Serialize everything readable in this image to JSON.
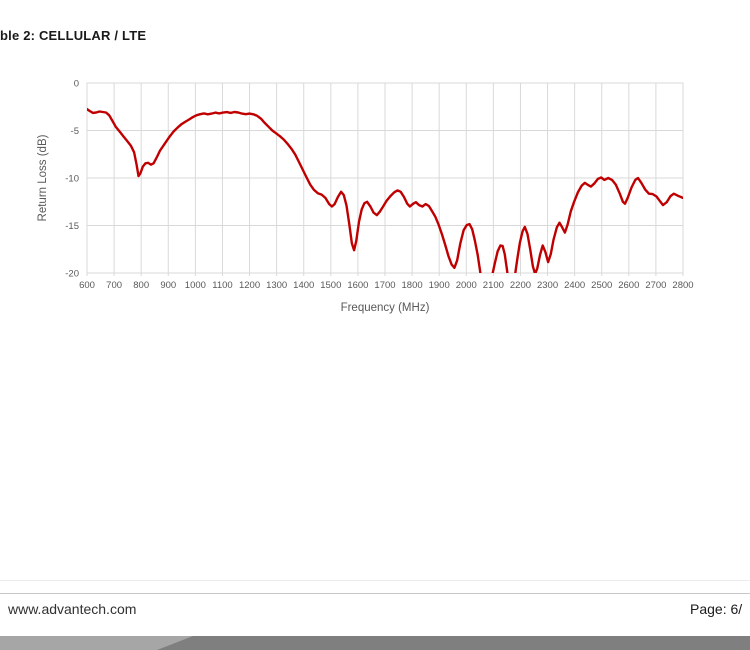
{
  "page": {
    "title": "ble 2: CELLULAR / LTE",
    "footer": {
      "website": "www.advantech.com",
      "page_label": "Page: 6/"
    },
    "colors": {
      "band_left": "#a6a6a6",
      "band_right": "#7f7f7f",
      "divider": "#c8c8c8"
    }
  },
  "chart_data": {
    "type": "line",
    "title": "",
    "xlabel": "Frequency (MHz)",
    "ylabel": "Return Loss (dB)",
    "xlim": [
      600,
      2800
    ],
    "ylim": [
      -20,
      0
    ],
    "x_ticks": [
      600,
      700,
      800,
      900,
      1000,
      1100,
      1200,
      1300,
      1400,
      1500,
      1600,
      1700,
      1800,
      1900,
      2000,
      2100,
      2200,
      2300,
      2400,
      2500,
      2600,
      2700,
      2800
    ],
    "y_ticks": [
      0,
      -5,
      -10,
      -15,
      -20
    ],
    "grid": true,
    "legend": "none",
    "line_color": "#C00000",
    "grid_color": "#D9D9D9",
    "tick_label_color": "#595959",
    "series": [
      {
        "name": "Return Loss",
        "points": [
          [
            600,
            -2.75
          ],
          [
            610,
            -2.95
          ],
          [
            622,
            -3.15
          ],
          [
            634,
            -3.1
          ],
          [
            646,
            -3.0
          ],
          [
            658,
            -3.05
          ],
          [
            670,
            -3.1
          ],
          [
            682,
            -3.4
          ],
          [
            694,
            -4.0
          ],
          [
            706,
            -4.6
          ],
          [
            720,
            -5.1
          ],
          [
            734,
            -5.6
          ],
          [
            748,
            -6.1
          ],
          [
            762,
            -6.6
          ],
          [
            774,
            -7.3
          ],
          [
            783,
            -8.6
          ],
          [
            790,
            -9.8
          ],
          [
            797,
            -9.5
          ],
          [
            806,
            -8.8
          ],
          [
            816,
            -8.45
          ],
          [
            826,
            -8.4
          ],
          [
            836,
            -8.6
          ],
          [
            846,
            -8.45
          ],
          [
            858,
            -7.8
          ],
          [
            870,
            -7.1
          ],
          [
            882,
            -6.6
          ],
          [
            894,
            -6.1
          ],
          [
            906,
            -5.6
          ],
          [
            920,
            -5.1
          ],
          [
            934,
            -4.7
          ],
          [
            948,
            -4.35
          ],
          [
            962,
            -4.1
          ],
          [
            976,
            -3.85
          ],
          [
            990,
            -3.6
          ],
          [
            1004,
            -3.4
          ],
          [
            1018,
            -3.28
          ],
          [
            1032,
            -3.2
          ],
          [
            1046,
            -3.3
          ],
          [
            1060,
            -3.22
          ],
          [
            1074,
            -3.12
          ],
          [
            1088,
            -3.2
          ],
          [
            1102,
            -3.12
          ],
          [
            1116,
            -3.06
          ],
          [
            1130,
            -3.15
          ],
          [
            1144,
            -3.05
          ],
          [
            1158,
            -3.1
          ],
          [
            1172,
            -3.22
          ],
          [
            1186,
            -3.28
          ],
          [
            1200,
            -3.22
          ],
          [
            1214,
            -3.3
          ],
          [
            1228,
            -3.45
          ],
          [
            1242,
            -3.75
          ],
          [
            1256,
            -4.2
          ],
          [
            1270,
            -4.6
          ],
          [
            1284,
            -5.0
          ],
          [
            1298,
            -5.3
          ],
          [
            1312,
            -5.6
          ],
          [
            1326,
            -5.95
          ],
          [
            1340,
            -6.4
          ],
          [
            1354,
            -6.9
          ],
          [
            1368,
            -7.5
          ],
          [
            1382,
            -8.3
          ],
          [
            1396,
            -9.1
          ],
          [
            1410,
            -9.9
          ],
          [
            1424,
            -10.7
          ],
          [
            1438,
            -11.25
          ],
          [
            1452,
            -11.6
          ],
          [
            1466,
            -11.75
          ],
          [
            1480,
            -12.1
          ],
          [
            1494,
            -12.75
          ],
          [
            1504,
            -13.0
          ],
          [
            1514,
            -12.75
          ],
          [
            1526,
            -12.0
          ],
          [
            1538,
            -11.45
          ],
          [
            1548,
            -11.8
          ],
          [
            1558,
            -12.9
          ],
          [
            1568,
            -14.8
          ],
          [
            1578,
            -16.9
          ],
          [
            1586,
            -17.6
          ],
          [
            1594,
            -16.6
          ],
          [
            1604,
            -14.6
          ],
          [
            1614,
            -13.3
          ],
          [
            1624,
            -12.65
          ],
          [
            1634,
            -12.5
          ],
          [
            1646,
            -13.0
          ],
          [
            1658,
            -13.65
          ],
          [
            1670,
            -13.9
          ],
          [
            1682,
            -13.5
          ],
          [
            1694,
            -12.95
          ],
          [
            1706,
            -12.4
          ],
          [
            1720,
            -11.9
          ],
          [
            1734,
            -11.5
          ],
          [
            1746,
            -11.3
          ],
          [
            1758,
            -11.45
          ],
          [
            1770,
            -12.0
          ],
          [
            1782,
            -12.7
          ],
          [
            1792,
            -13.0
          ],
          [
            1804,
            -12.7
          ],
          [
            1814,
            -12.55
          ],
          [
            1826,
            -12.85
          ],
          [
            1838,
            -13.0
          ],
          [
            1850,
            -12.75
          ],
          [
            1862,
            -12.95
          ],
          [
            1874,
            -13.5
          ],
          [
            1886,
            -14.1
          ],
          [
            1898,
            -14.9
          ],
          [
            1910,
            -15.9
          ],
          [
            1922,
            -17.0
          ],
          [
            1934,
            -18.2
          ],
          [
            1946,
            -19.1
          ],
          [
            1956,
            -19.45
          ],
          [
            1966,
            -18.7
          ],
          [
            1978,
            -16.9
          ],
          [
            1990,
            -15.5
          ],
          [
            2002,
            -14.95
          ],
          [
            2012,
            -14.85
          ],
          [
            2022,
            -15.4
          ],
          [
            2032,
            -16.6
          ],
          [
            2042,
            -18.1
          ],
          [
            2052,
            -20.0
          ],
          [
            2062,
            -21.8
          ],
          [
            2074,
            -22.6
          ],
          [
            2086,
            -21.6
          ],
          [
            2096,
            -20.2
          ],
          [
            2106,
            -18.9
          ],
          [
            2116,
            -17.7
          ],
          [
            2126,
            -17.1
          ],
          [
            2134,
            -17.15
          ],
          [
            2142,
            -18.0
          ],
          [
            2150,
            -19.6
          ],
          [
            2158,
            -21.3
          ],
          [
            2168,
            -21.9
          ],
          [
            2178,
            -20.6
          ],
          [
            2188,
            -18.6
          ],
          [
            2198,
            -16.8
          ],
          [
            2208,
            -15.6
          ],
          [
            2216,
            -15.15
          ],
          [
            2226,
            -15.9
          ],
          [
            2236,
            -17.5
          ],
          [
            2246,
            -19.3
          ],
          [
            2254,
            -20.1
          ],
          [
            2262,
            -19.5
          ],
          [
            2272,
            -18.1
          ],
          [
            2282,
            -17.1
          ],
          [
            2292,
            -17.8
          ],
          [
            2302,
            -18.85
          ],
          [
            2312,
            -18.0
          ],
          [
            2322,
            -16.5
          ],
          [
            2334,
            -15.2
          ],
          [
            2344,
            -14.7
          ],
          [
            2354,
            -15.2
          ],
          [
            2364,
            -15.75
          ],
          [
            2374,
            -14.9
          ],
          [
            2386,
            -13.5
          ],
          [
            2398,
            -12.5
          ],
          [
            2412,
            -11.5
          ],
          [
            2426,
            -10.8
          ],
          [
            2438,
            -10.5
          ],
          [
            2450,
            -10.75
          ],
          [
            2460,
            -10.9
          ],
          [
            2472,
            -10.6
          ],
          [
            2486,
            -10.1
          ],
          [
            2498,
            -9.95
          ],
          [
            2510,
            -10.2
          ],
          [
            2524,
            -10.0
          ],
          [
            2538,
            -10.2
          ],
          [
            2552,
            -10.7
          ],
          [
            2566,
            -11.6
          ],
          [
            2578,
            -12.5
          ],
          [
            2586,
            -12.7
          ],
          [
            2596,
            -12.1
          ],
          [
            2610,
            -11.0
          ],
          [
            2624,
            -10.2
          ],
          [
            2634,
            -10.0
          ],
          [
            2646,
            -10.5
          ],
          [
            2660,
            -11.2
          ],
          [
            2674,
            -11.65
          ],
          [
            2688,
            -11.7
          ],
          [
            2702,
            -11.95
          ],
          [
            2714,
            -12.4
          ],
          [
            2726,
            -12.85
          ],
          [
            2740,
            -12.55
          ],
          [
            2754,
            -11.9
          ],
          [
            2766,
            -11.65
          ],
          [
            2780,
            -11.85
          ],
          [
            2800,
            -12.1
          ]
        ]
      }
    ]
  }
}
